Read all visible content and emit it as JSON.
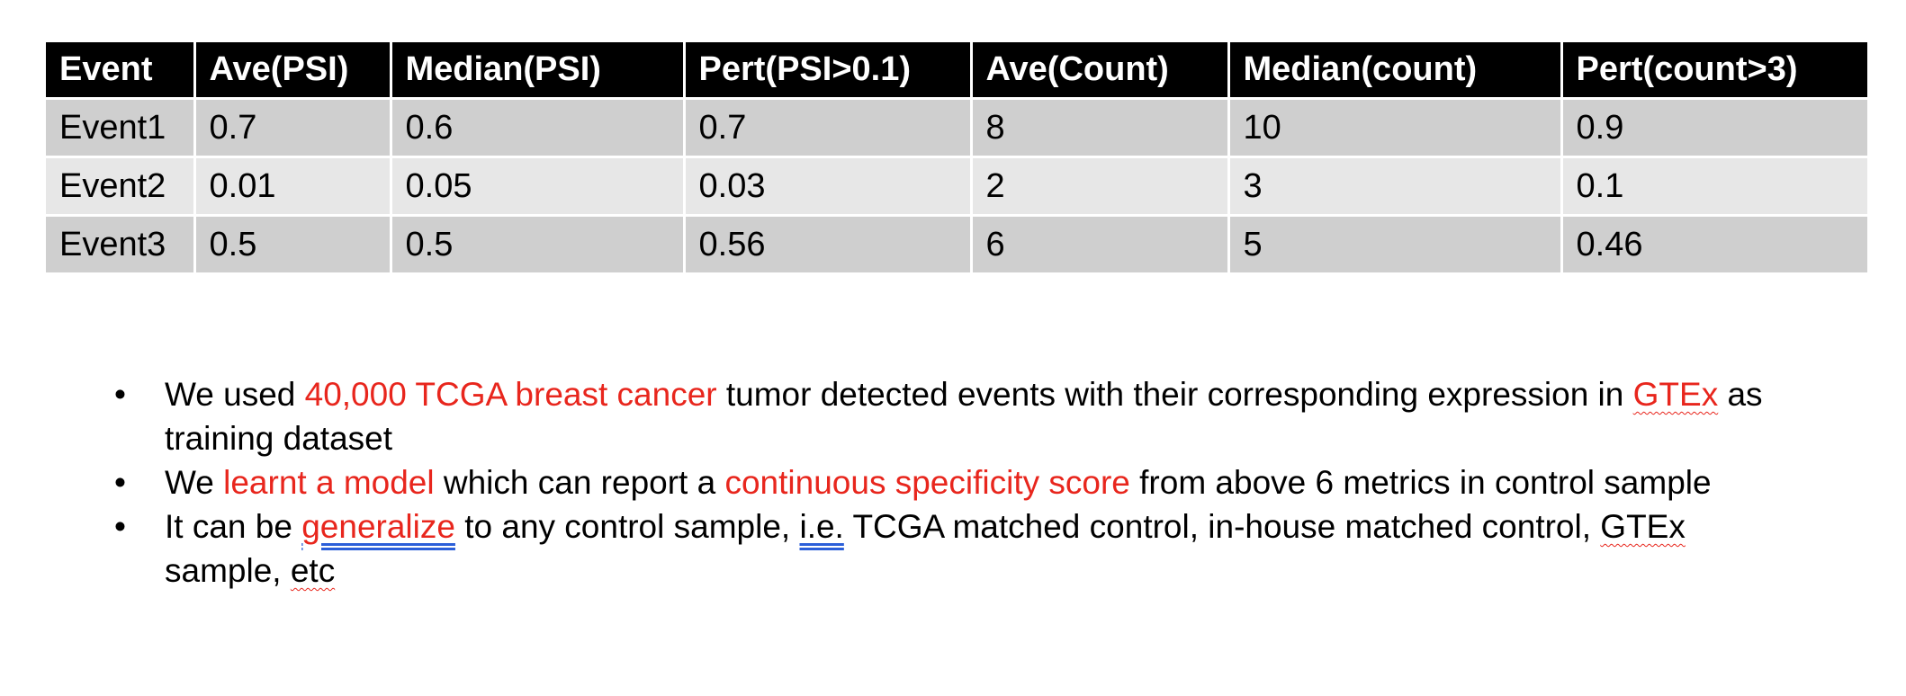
{
  "table": {
    "headers": [
      "Event",
      "Ave(PSI)",
      "Median(PSI)",
      "Pert(PSI>0.1)",
      "Ave(Count)",
      "Median(count)",
      "Pert(count>3)"
    ],
    "rows": [
      [
        "Event1",
        "0.7",
        "0.6",
        "0.7",
        "8",
        "10",
        "0.9"
      ],
      [
        "Event2",
        "0.01",
        "0.05",
        "0.03",
        "2",
        "3",
        "0.1"
      ],
      [
        "Event3",
        "0.5",
        "0.5",
        "0.56",
        "6",
        "5",
        "0.46"
      ]
    ]
  },
  "bullets": [
    {
      "marker": "•",
      "p1": "We used ",
      "r1": "40,000 TCGA breast cancer",
      "p2": " tumor detected events with their corresponding expression in ",
      "r2": "GTEx",
      "p3": " as training dataset"
    },
    {
      "marker": "•",
      "p1": "We ",
      "r1": "learnt a model",
      "p2": " which can report a ",
      "r2": "continuous specificity score",
      "p3": " from above 6 metrics in control sample"
    },
    {
      "marker": "•",
      "p1": "It can be ",
      "r1": "generalize",
      "p2": " to any control sample, ",
      "u1": "i.e.",
      "p3": " TCGA matched control, in-house matched control, ",
      "s1": "GTEx",
      "p4": " sample, ",
      "s2": "etc"
    }
  ],
  "colors": {
    "header_bg": "#000000",
    "row_dark": "#cfcfcf",
    "row_light": "#e7e7e7",
    "highlight_red": "#e8261d"
  }
}
